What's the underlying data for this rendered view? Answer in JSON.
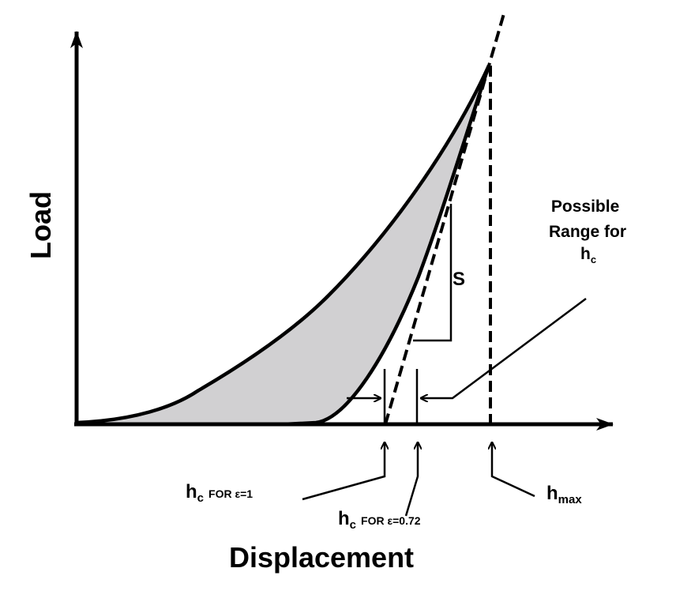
{
  "axes": {
    "y_label": "Load",
    "x_label": "Displacement"
  },
  "annotations": {
    "stiffness": "S",
    "range_line1": "Possible",
    "range_line2": "Range for",
    "range_h": "h",
    "range_h_sub": "c",
    "hc1_h": "h",
    "hc1_sub": "c",
    "hc1_rest": "FOR ε=1",
    "hc072_h": "h",
    "hc072_sub": "c",
    "hc072_rest": "FOR ε=0.72",
    "hmax_h": "h",
    "hmax_sub": "max"
  },
  "colors": {
    "fill": "#d1d0d2",
    "line": "#000000"
  }
}
